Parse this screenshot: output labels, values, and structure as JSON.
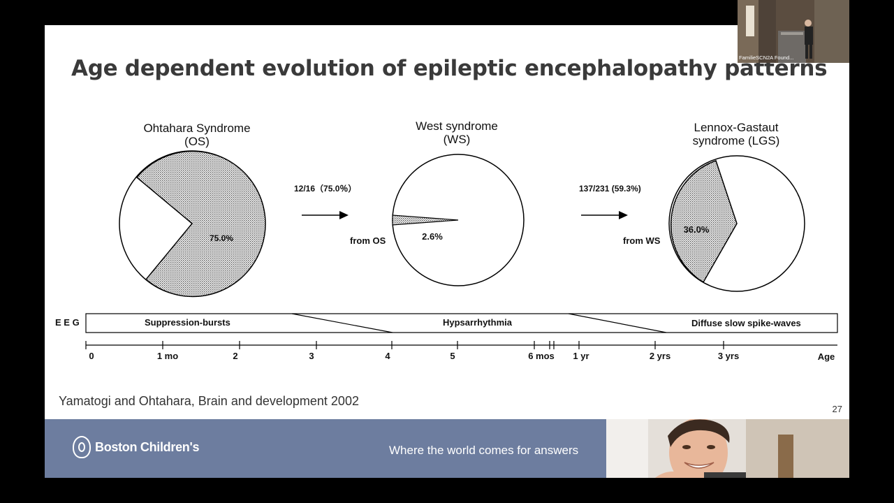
{
  "slide": {
    "title": "Age dependent evolution of epileptic encephalopathy patterns",
    "citation": "Yamatogi and  Ohtahara, Brain and development  2002",
    "page_number": "27"
  },
  "diagram": {
    "pies": [
      {
        "name_line1": "Ohtahara Syndrome",
        "name_line2": "(OS)",
        "label": "75.0%",
        "shaded_fraction": 0.75
      },
      {
        "name_line1": "West syndrome",
        "name_line2": "(WS)",
        "label": "2.6%",
        "shaded_fraction": 0.026,
        "from_label": "from OS"
      },
      {
        "name_line1": "Lennox-Gastaut",
        "name_line2": "syndrome (LGS)",
        "label": "36.0%",
        "shaded_fraction": 0.36,
        "from_label": "from WS"
      }
    ],
    "arrows": [
      {
        "label": "12/16（75.0％）"
      },
      {
        "label": "137/231 (59.3%)"
      }
    ],
    "eeg": {
      "label": "E E G",
      "segments": [
        "Suppression-bursts",
        "Hypsarrhythmia",
        "Diffuse slow spike-waves"
      ]
    },
    "timeline": {
      "ticks": [
        "0",
        "1  mo",
        "2",
        "3",
        "4",
        "5",
        "6  mos",
        "1  yr",
        "2  yrs",
        "3  yrs"
      ],
      "axis_label": "Age"
    }
  },
  "footer": {
    "logo_text": "Boston Children's",
    "tagline": "Where the world comes for answers",
    "background_color": "#6d7d9f"
  },
  "webcam": {
    "label": "FamilieSCN2A Found..."
  }
}
